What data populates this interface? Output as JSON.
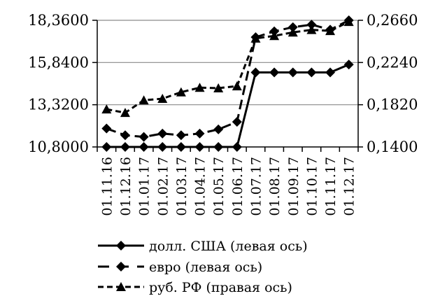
{
  "chart_data": {
    "type": "line",
    "title": "",
    "xlabel": "",
    "ylabel": "",
    "categories": [
      "01.11.16",
      "01.12.16",
      "01.01.17",
      "01.02.17",
      "01.03.17",
      "01.04.17",
      "01.05.17",
      "01.06.17",
      "01.07.17",
      "01.08.17",
      "01.09.17",
      "01.10.17",
      "01.11.17",
      "01.12.17"
    ],
    "left_axis": {
      "ylim": [
        10.8,
        18.36
      ],
      "ticks": [
        "10,8000",
        "13,3200",
        "15,8400",
        "18,3600"
      ]
    },
    "right_axis": {
      "ylim": [
        0.14,
        0.266
      ],
      "ticks": [
        "0,1400",
        "0,1820",
        "0,2240",
        "0,2660"
      ]
    },
    "grid": "horizontal",
    "legend_position": "bottom",
    "series": [
      {
        "name": "долл. США (левая ось)",
        "axis": "left",
        "style": "solid",
        "marker": "diamond",
        "values": [
          10.8,
          10.8,
          10.8,
          10.8,
          10.8,
          10.8,
          10.8,
          10.8,
          15.25,
          15.25,
          15.25,
          15.25,
          15.25,
          15.72
        ]
      },
      {
        "name": "евро (левая ось)",
        "axis": "left",
        "style": "dashed",
        "marker": "diamond",
        "values": [
          11.9,
          11.5,
          11.4,
          11.6,
          11.5,
          11.6,
          11.85,
          12.3,
          17.35,
          17.7,
          17.95,
          18.1,
          17.8,
          18.36
        ]
      },
      {
        "name": "руб. РФ (правая ось)",
        "axis": "right",
        "style": "short-dashed",
        "marker": "triangle",
        "values": [
          0.1775,
          0.174,
          0.1865,
          0.188,
          0.1945,
          0.199,
          0.1985,
          0.2005,
          0.248,
          0.2505,
          0.254,
          0.2565,
          0.2555,
          0.2645
        ]
      }
    ]
  }
}
